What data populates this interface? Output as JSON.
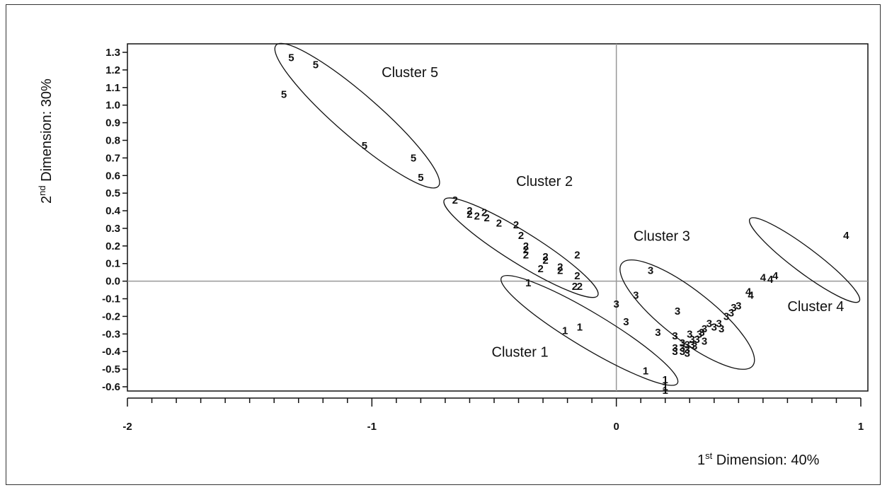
{
  "chart_data": {
    "type": "scatter",
    "xlabel": {
      "prefix": "1",
      "sup": "st",
      "rest": " Dimension: 40%"
    },
    "ylabel": {
      "prefix": "2",
      "sup": "nd",
      "rest": " Dimension: 30%"
    },
    "xlim": [
      -2,
      1
    ],
    "ylim": [
      -0.65,
      1.33
    ],
    "x_ticks": [
      "-2",
      "-1",
      "0",
      "1"
    ],
    "y_ticks": [
      "-0.6",
      "-0.5",
      "-0.4",
      "-0.3",
      "-0.2",
      "-0.1",
      "0.0",
      "0.1",
      "0.2",
      "0.3",
      "0.4",
      "0.5",
      "0.6",
      "0.7",
      "0.8",
      "0.9",
      "1.0",
      "1.1",
      "1.2",
      "1.3"
    ],
    "reference_lines": {
      "x": 0,
      "y": 0
    },
    "series": [
      {
        "name": "1",
        "points": [
          [
            -0.36,
            -0.01
          ],
          [
            -0.21,
            -0.28
          ],
          [
            -0.15,
            -0.26
          ],
          [
            0.12,
            -0.51
          ],
          [
            0.2,
            -0.56
          ],
          [
            0.2,
            -0.6
          ],
          [
            0.2,
            -0.62
          ]
        ]
      },
      {
        "name": "2",
        "points": [
          [
            -0.66,
            0.46
          ],
          [
            -0.6,
            0.4
          ],
          [
            -0.6,
            0.38
          ],
          [
            -0.57,
            0.37
          ],
          [
            -0.54,
            0.39
          ],
          [
            -0.53,
            0.36
          ],
          [
            -0.48,
            0.33
          ],
          [
            -0.41,
            0.32
          ],
          [
            -0.39,
            0.26
          ],
          [
            -0.37,
            0.2
          ],
          [
            -0.37,
            0.18
          ],
          [
            -0.37,
            0.15
          ],
          [
            -0.29,
            0.14
          ],
          [
            -0.29,
            0.12
          ],
          [
            -0.31,
            0.07
          ],
          [
            -0.23,
            0.08
          ],
          [
            -0.23,
            0.06
          ],
          [
            -0.16,
            0.15
          ],
          [
            -0.16,
            0.03
          ],
          [
            -0.17,
            -0.03
          ],
          [
            -0.15,
            -0.03
          ]
        ]
      },
      {
        "name": "3",
        "points": [
          [
            0.14,
            0.06
          ],
          [
            0.08,
            -0.08
          ],
          [
            0.0,
            -0.13
          ],
          [
            0.04,
            -0.23
          ],
          [
            0.25,
            -0.17
          ],
          [
            0.17,
            -0.29
          ],
          [
            0.24,
            -0.31
          ],
          [
            0.24,
            -0.38
          ],
          [
            0.24,
            -0.4
          ],
          [
            0.27,
            -0.38
          ],
          [
            0.27,
            -0.4
          ],
          [
            0.29,
            -0.36
          ],
          [
            0.29,
            -0.39
          ],
          [
            0.31,
            -0.36
          ],
          [
            0.31,
            -0.33
          ],
          [
            0.3,
            -0.3
          ],
          [
            0.33,
            -0.33
          ],
          [
            0.34,
            -0.3
          ],
          [
            0.36,
            -0.27
          ],
          [
            0.38,
            -0.24
          ],
          [
            0.4,
            -0.26
          ],
          [
            0.42,
            -0.24
          ],
          [
            0.43,
            -0.27
          ],
          [
            0.36,
            -0.34
          ],
          [
            0.32,
            -0.37
          ],
          [
            0.45,
            -0.2
          ],
          [
            0.47,
            -0.18
          ],
          [
            0.48,
            -0.15
          ],
          [
            0.5,
            -0.14
          ],
          [
            0.27,
            -0.35
          ],
          [
            0.29,
            -0.41
          ],
          [
            0.35,
            -0.29
          ]
        ]
      },
      {
        "name": "4",
        "points": [
          [
            0.54,
            -0.06
          ],
          [
            0.55,
            -0.08
          ],
          [
            0.6,
            0.02
          ],
          [
            0.63,
            0.01
          ],
          [
            0.65,
            0.03
          ],
          [
            0.94,
            0.26
          ]
        ]
      },
      {
        "name": "5",
        "points": [
          [
            -1.33,
            1.27
          ],
          [
            -1.23,
            1.23
          ],
          [
            -1.36,
            1.06
          ],
          [
            -1.03,
            0.77
          ],
          [
            -0.83,
            0.7
          ],
          [
            -0.8,
            0.59
          ]
        ]
      }
    ],
    "clusters": [
      {
        "label": "Cluster 1",
        "ellipse": {
          "cx": -0.11,
          "cy": -0.28,
          "rx": 0.42,
          "ry": 0.1,
          "angle_deg": 31
        },
        "label_pos": [
          -0.51,
          -0.43
        ]
      },
      {
        "label": "Cluster 2",
        "ellipse": {
          "cx": -0.39,
          "cy": 0.19,
          "rx": 0.37,
          "ry": 0.09,
          "angle_deg": 32
        },
        "label_pos": [
          -0.41,
          0.54
        ]
      },
      {
        "label": "Cluster 3",
        "ellipse": {
          "cx": 0.29,
          "cy": -0.19,
          "rx": 0.34,
          "ry": 0.14,
          "angle_deg": 38
        },
        "label_pos": [
          0.07,
          0.23
        ]
      },
      {
        "label": "Cluster 4",
        "ellipse": {
          "cx": 0.77,
          "cy": 0.12,
          "rx": 0.28,
          "ry": 0.07,
          "angle_deg": 37
        },
        "label_pos": [
          0.7,
          -0.17
        ]
      },
      {
        "label": "Cluster 5",
        "ellipse": {
          "cx": -1.06,
          "cy": 0.94,
          "rx": 0.44,
          "ry": 0.12,
          "angle_deg": 41
        },
        "label_pos": [
          -0.96,
          1.16
        ]
      }
    ]
  }
}
